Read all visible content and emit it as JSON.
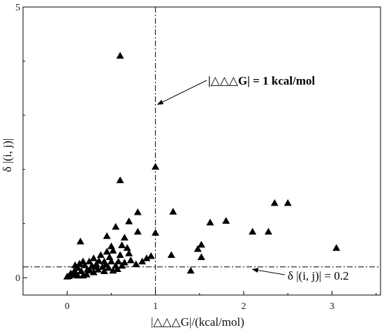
{
  "chart_data": {
    "type": "scatter",
    "xlabel": "|△△△G|/(kcal/mol)",
    "ylabel": "δ |(i, j)|",
    "xlim": [
      -0.5,
      3.55
    ],
    "ylim": [
      -0.32,
      5.0
    ],
    "x_ticks": [
      0,
      1,
      2,
      3
    ],
    "y_ticks": [
      0,
      5
    ],
    "x_tick_labels": [
      "0",
      "1",
      "2",
      "3"
    ],
    "y_tick_labels": [
      "0",
      "5"
    ],
    "marker": "triangle",
    "marker_color": "#000000",
    "grid": false,
    "reference_lines": [
      {
        "orientation": "vertical",
        "value": 1.0,
        "style": "dash-dot"
      },
      {
        "orientation": "horizontal",
        "value": 0.2,
        "style": "dash-dot"
      }
    ],
    "annotations": [
      {
        "text": "|△△△G| = 1 kcal/mol",
        "bold": true,
        "points_to": [
          1.0,
          3.2
        ]
      },
      {
        "text": "δ |(i, j)| = 0.2",
        "bold": false,
        "points_to": [
          2.1,
          0.18
        ]
      }
    ],
    "points": [
      [
        0.6,
        4.1
      ],
      [
        1.0,
        2.05
      ],
      [
        0.6,
        1.8
      ],
      [
        0.8,
        1.21
      ],
      [
        0.7,
        1.04
      ],
      [
        0.55,
        0.94
      ],
      [
        0.45,
        0.77
      ],
      [
        0.15,
        0.67
      ],
      [
        0.65,
        0.74
      ],
      [
        0.8,
        0.85
      ],
      [
        1.0,
        0.83
      ],
      [
        1.2,
        1.22
      ],
      [
        1.62,
        1.02
      ],
      [
        1.8,
        1.05
      ],
      [
        2.1,
        0.85
      ],
      [
        2.28,
        0.85
      ],
      [
        2.35,
        1.38
      ],
      [
        2.5,
        1.38
      ],
      [
        3.05,
        0.55
      ],
      [
        1.52,
        0.61
      ],
      [
        1.48,
        0.53
      ],
      [
        1.52,
        0.38
      ],
      [
        1.4,
        0.13
      ],
      [
        1.18,
        0.42
      ],
      [
        0.95,
        0.4
      ],
      [
        0.9,
        0.36
      ],
      [
        0.85,
        0.3
      ],
      [
        0.78,
        0.25
      ],
      [
        0.72,
        0.32
      ],
      [
        0.7,
        0.45
      ],
      [
        0.68,
        0.55
      ],
      [
        0.62,
        0.6
      ],
      [
        0.6,
        0.42
      ],
      [
        0.58,
        0.3
      ],
      [
        0.55,
        0.22
      ],
      [
        0.52,
        0.5
      ],
      [
        0.5,
        0.58
      ],
      [
        0.48,
        0.38
      ],
      [
        0.45,
        0.48
      ],
      [
        0.42,
        0.3
      ],
      [
        0.4,
        0.2
      ],
      [
        0.38,
        0.42
      ],
      [
        0.36,
        0.31
      ],
      [
        0.33,
        0.25
      ],
      [
        0.3,
        0.36
      ],
      [
        0.28,
        0.22
      ],
      [
        0.25,
        0.3
      ],
      [
        0.23,
        0.15
      ],
      [
        0.2,
        0.23
      ],
      [
        0.18,
        0.3
      ],
      [
        0.16,
        0.12
      ],
      [
        0.14,
        0.26
      ],
      [
        0.12,
        0.18
      ],
      [
        0.1,
        0.08
      ],
      [
        0.09,
        0.23
      ],
      [
        0.08,
        0.12
      ],
      [
        0.06,
        0.05
      ],
      [
        0.04,
        0.08
      ],
      [
        0.02,
        0.03
      ],
      [
        0.0,
        0.02
      ],
      [
        0.22,
        0.06
      ],
      [
        0.26,
        0.13
      ],
      [
        0.3,
        0.1
      ],
      [
        0.35,
        0.15
      ],
      [
        0.42,
        0.12
      ],
      [
        0.47,
        0.18
      ],
      [
        0.52,
        0.13
      ],
      [
        0.57,
        0.16
      ],
      [
        0.62,
        0.22
      ],
      [
        0.65,
        0.28
      ],
      [
        0.32,
        0.2
      ],
      [
        0.18,
        0.04
      ],
      [
        0.12,
        0.04
      ],
      [
        0.44,
        0.24
      ],
      [
        0.5,
        0.3
      ]
    ]
  }
}
